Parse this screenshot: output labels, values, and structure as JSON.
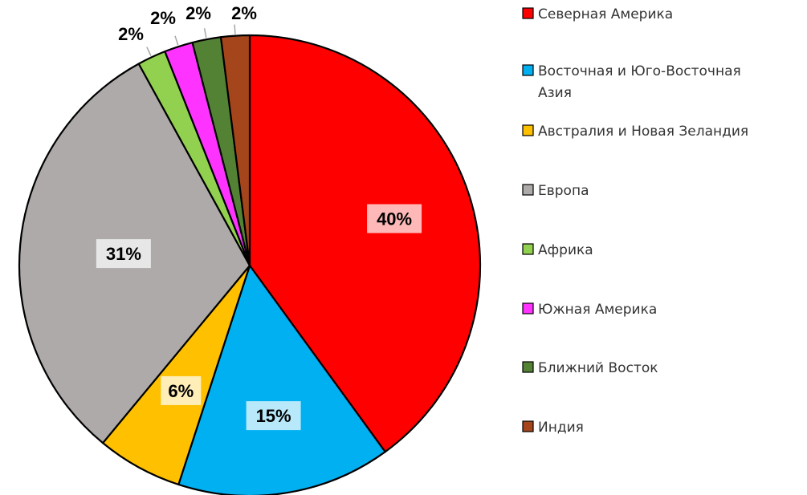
{
  "chart_data": {
    "type": "pie",
    "title": "",
    "legend_position": "right",
    "slices": [
      {
        "name": "Северная Америка",
        "value": 40,
        "label": "40%",
        "color": "#FF0000"
      },
      {
        "name": "Восточная и Юго-Восточная Азия",
        "value": 15,
        "label": "15%",
        "color": "#00B0F0"
      },
      {
        "name": "Австралия и Новая Зеландия",
        "value": 6,
        "label": "6%",
        "color": "#FFC000"
      },
      {
        "name": "Европа",
        "value": 31,
        "label": "31%",
        "color": "#AEAAAA"
      },
      {
        "name": "Африка",
        "value": 2,
        "label": "2%",
        "color": "#92D050"
      },
      {
        "name": "Южная Америка",
        "value": 2,
        "label": "2%",
        "color": "#FF33FF"
      },
      {
        "name": "Ближний Восток",
        "value": 2,
        "label": "2%",
        "color": "#548235"
      },
      {
        "name": "Индия",
        "value": 2,
        "label": "2%",
        "color": "#A5451B"
      }
    ]
  }
}
